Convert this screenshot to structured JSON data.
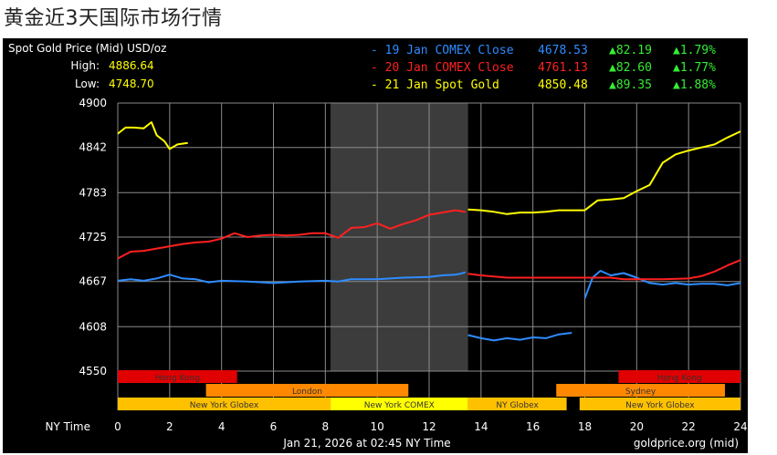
{
  "page": {
    "title": "黄金近3天国际市场行情"
  },
  "chart_data": {
    "type": "line",
    "title": "Spot Gold Price (Mid) USD/oz",
    "stats": {
      "high_label": "High:",
      "high_value": "4886.64",
      "low_label": "Low:",
      "low_value": "4748.70"
    },
    "xlabel": "NY Time",
    "xlim": [
      0,
      24
    ],
    "xticks": [
      0,
      2,
      4,
      6,
      8,
      10,
      12,
      14,
      16,
      18,
      20,
      22,
      24
    ],
    "ylim": [
      4550,
      4900
    ],
    "yticks": [
      4550,
      4608,
      4667,
      4725,
      4783,
      4842,
      4900
    ],
    "grid": true,
    "shaded_interval": [
      8.2,
      13.5
    ],
    "legend_position": "top-right",
    "series": [
      {
        "name": "- 19 Jan COMEX Close",
        "close": "4678.53",
        "change": "▲82.19",
        "percent": "▲1.79%",
        "color": "#2f8cff",
        "x": [
          0,
          0.5,
          1,
          1.5,
          2,
          2.5,
          3,
          3.5,
          4,
          5,
          6,
          7,
          8,
          8.5,
          9,
          10,
          11,
          12,
          12.5,
          13,
          13.2,
          13.4
        ],
        "y": [
          4668,
          4670,
          4668,
          4671,
          4676,
          4671,
          4670,
          4666,
          4668,
          4667,
          4665,
          4667,
          4668,
          4667,
          4670,
          4670,
          4672,
          4673,
          4675,
          4676,
          4677,
          4679
        ]
      },
      {
        "name": "- 19 Jan COMEX Close",
        "color": "#2f8cff",
        "x": [
          13.5,
          14,
          14.5,
          15,
          15.5,
          16,
          16.5,
          17,
          17.5
        ],
        "y": [
          4597,
          4593,
          4590,
          4593,
          4591,
          4594,
          4593,
          4598,
          4600
        ]
      },
      {
        "name": "- 19 Jan COMEX Close",
        "color": "#2f8cff",
        "x": [
          18,
          18.3,
          18.6,
          19,
          19.5,
          20,
          20.5,
          21,
          21.5,
          22,
          22.5,
          23,
          23.5,
          24
        ],
        "y": [
          4645,
          4672,
          4681,
          4675,
          4678,
          4672,
          4665,
          4663,
          4665,
          4663,
          4664,
          4664,
          4662,
          4665
        ]
      },
      {
        "name": "- 20 Jan COMEX Close",
        "close": "4761.13",
        "change": "▲82.60",
        "percent": "▲1.77%",
        "color": "#ff2020",
        "x": [
          0,
          0.5,
          1,
          1.5,
          2,
          2.5,
          3,
          3.5,
          4,
          4.5,
          5,
          5.5,
          6,
          6.5,
          7,
          7.5,
          8,
          8.5,
          9,
          9.5,
          10,
          10.5,
          11,
          11.5,
          12,
          12.5,
          13,
          13.4
        ],
        "y": [
          4697,
          4706,
          4707,
          4710,
          4713,
          4716,
          4718,
          4719,
          4723,
          4730,
          4725,
          4727,
          4728,
          4727,
          4728,
          4730,
          4730,
          4724,
          4737,
          4738,
          4743,
          4736,
          4742,
          4747,
          4754,
          4757,
          4760,
          4758
        ],
        "x2": [
          13.5,
          14,
          15,
          16,
          17,
          18,
          19,
          19.5,
          20,
          21,
          22,
          22.5,
          23,
          23.5,
          24
        ],
        "y2": [
          4677,
          4675,
          4672,
          4672,
          4672,
          4672,
          4672,
          4670,
          4670,
          4670,
          4671,
          4674,
          4680,
          4688,
          4695
        ]
      },
      {
        "name": "- 21 Jan Spot Gold",
        "close": "4850.48",
        "change": "▲89.35",
        "percent": "▲1.88%",
        "color": "#ffff00",
        "x": [
          0,
          0.3,
          0.6,
          1,
          1.3,
          1.5,
          1.8,
          2,
          2.3,
          2.7
        ],
        "y": [
          4860,
          4868,
          4868,
          4867,
          4875,
          4858,
          4850,
          4840,
          4846,
          4848
        ],
        "x2": [
          13.5,
          14,
          14.5,
          15,
          15.5,
          16,
          16.5,
          17,
          17.5,
          18,
          18.5,
          19,
          19.5,
          20,
          20.5,
          21,
          21.5,
          22,
          22.5,
          23,
          23.5,
          24
        ],
        "y2": [
          4761,
          4760,
          4758,
          4755,
          4757,
          4757,
          4758,
          4760,
          4760,
          4760,
          4773,
          4774,
          4776,
          4785,
          4793,
          4822,
          4833,
          4838,
          4842,
          4846,
          4855,
          4863
        ]
      }
    ],
    "sessions": [
      {
        "label": "Hong Kong",
        "start": 0,
        "end": 4.6,
        "row": 0,
        "color": "#e00000"
      },
      {
        "label": "Hong Kong",
        "start": 19.3,
        "end": 24,
        "row": 0,
        "color": "#e00000"
      },
      {
        "label": "London",
        "start": 3.4,
        "end": 11.2,
        "row": 1,
        "color": "#ff8800"
      },
      {
        "label": "Sydney",
        "start": 16.9,
        "end": 23.4,
        "row": 1,
        "color": "#ff8800"
      },
      {
        "label": "New York Globex",
        "start": 0,
        "end": 8.2,
        "row": 2,
        "color": "#ffc000"
      },
      {
        "label": "New York COMEX",
        "start": 8.2,
        "end": 13.5,
        "row": 2,
        "color": "#ffff00"
      },
      {
        "label": "NY Globex",
        "start": 13.5,
        "end": 17.3,
        "row": 2,
        "color": "#ffc000"
      },
      {
        "label": "New York Globex",
        "start": 17.8,
        "end": 24,
        "row": 2,
        "color": "#ffc000"
      }
    ],
    "footer": {
      "timestamp": "Jan 21, 2026 at 02:45 NY Time",
      "source": "goldprice.org (mid)"
    }
  }
}
